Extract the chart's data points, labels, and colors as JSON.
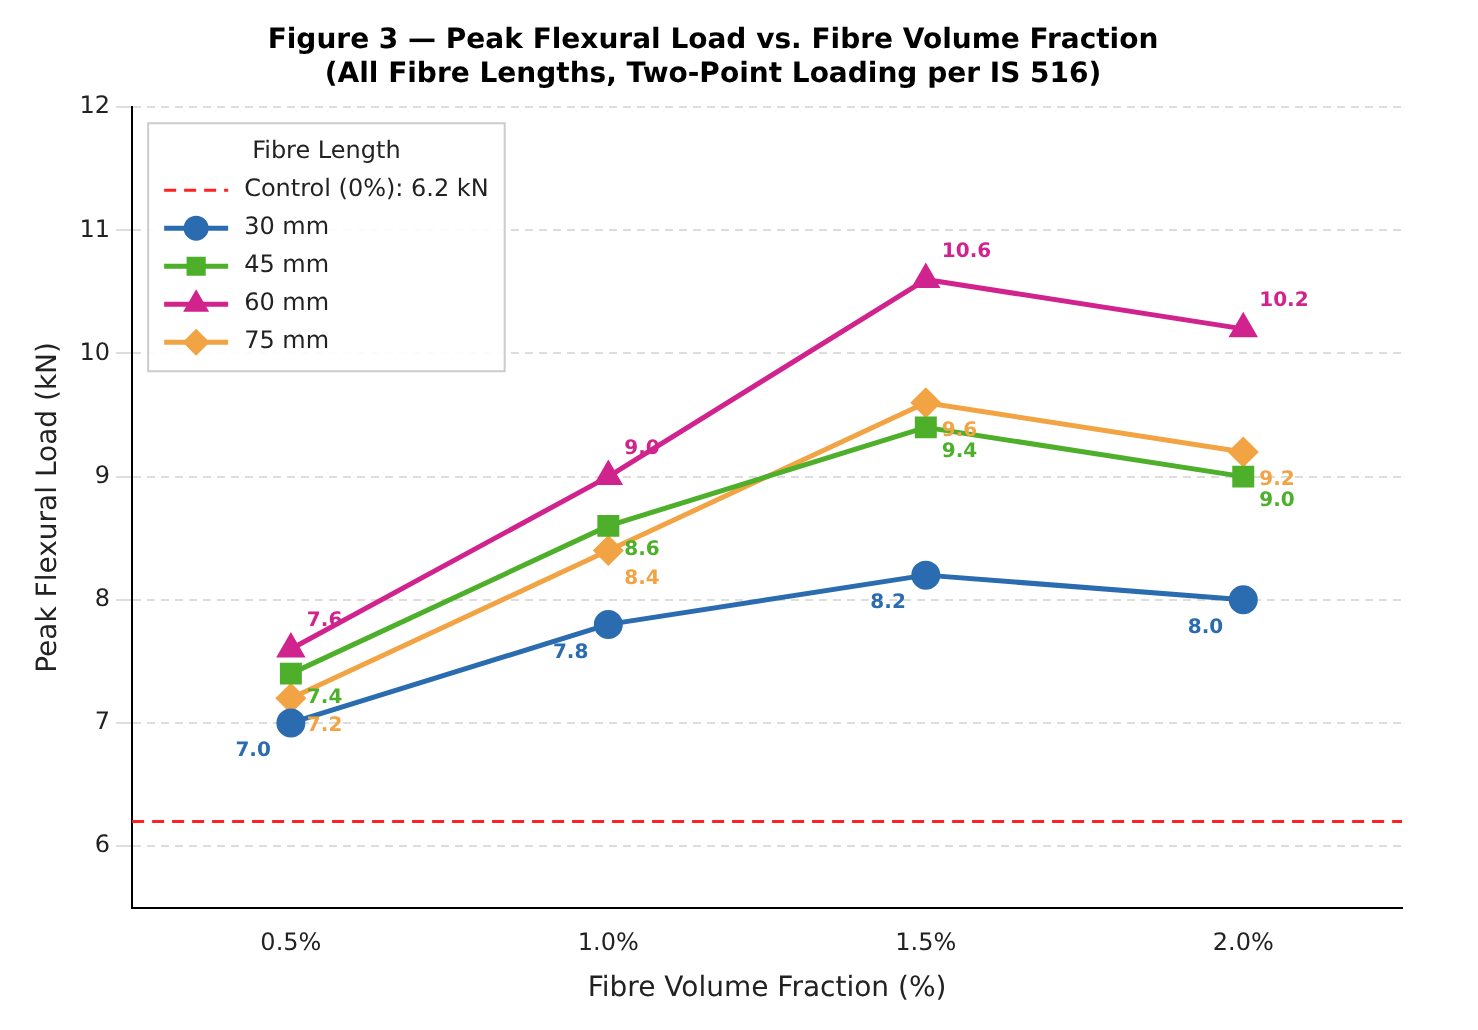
{
  "chart_data": {
    "type": "line",
    "title": "Figure 3 — Peak Flexural Load vs. Fibre Volume Fraction",
    "subtitle": "(All Fibre Lengths, Two-Point Loading per IS 516)",
    "xlabel": "Fibre Volume Fraction (%)",
    "ylabel": "Peak Flexural Load (kN)",
    "legend_title": "Fibre Length",
    "categories": [
      "0.5%",
      "1.0%",
      "1.5%",
      "2.0%"
    ],
    "series": [
      {
        "name": "30 mm",
        "color": "#2b6cb0",
        "marker": "circle",
        "values": [
          7.0,
          7.8,
          8.2,
          8.0
        ],
        "value_labels": [
          "7.0",
          "7.8",
          "8.2",
          "8.0"
        ]
      },
      {
        "name": "45 mm",
        "color": "#4daf2a",
        "marker": "square",
        "values": [
          7.4,
          8.6,
          9.4,
          9.0
        ],
        "value_labels": [
          "7.4",
          "8.6",
          "9.4",
          "9.0"
        ]
      },
      {
        "name": "60 mm",
        "color": "#d1238e",
        "marker": "triangle",
        "values": [
          7.6,
          9.0,
          10.6,
          10.2
        ],
        "value_labels": [
          "7.6",
          "9.0",
          "10.6",
          "10.2"
        ]
      },
      {
        "name": "75 mm",
        "color": "#f2a444",
        "marker": "diamond",
        "values": [
          7.2,
          8.4,
          9.6,
          9.2
        ],
        "value_labels": [
          "7.2",
          "8.4",
          "9.6",
          "9.2"
        ]
      }
    ],
    "ref_lines": [
      {
        "axis": "y",
        "value": 6.2,
        "label": "Control (0%): 6.2 kN",
        "color": "#ff2020",
        "line_style": "dashed"
      }
    ],
    "ylim": [
      5.5,
      12
    ],
    "yticks": [
      6,
      7,
      8,
      9,
      10,
      11,
      12
    ],
    "grid": "y",
    "legend": "top left",
    "line_style": "solid"
  }
}
